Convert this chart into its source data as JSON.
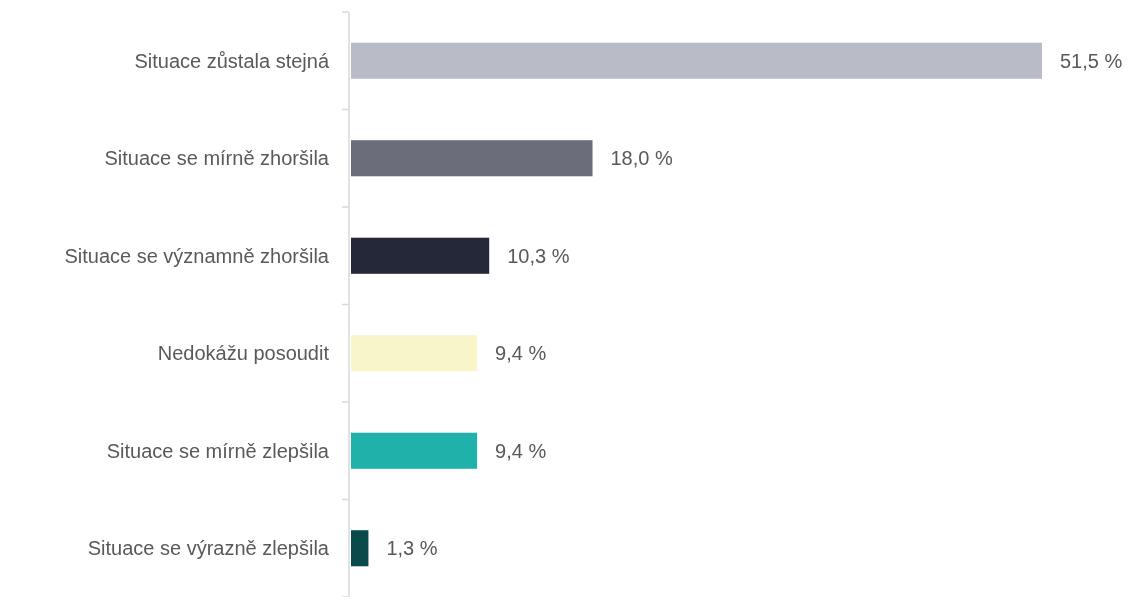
{
  "chart_data": {
    "type": "bar",
    "orientation": "horizontal",
    "categories": [
      "Situace zůstala stejná",
      "Situace se mírně zhoršila",
      "Situace se významně zhoršila",
      "Nedokážu posoudit",
      "Situace se mírně zlepšila",
      "Situace se výrazně zlepšila"
    ],
    "values": [
      51.5,
      18.0,
      10.3,
      9.4,
      9.4,
      1.3
    ],
    "value_labels": [
      "51,5 %",
      "18,0 %",
      "10,3 %",
      "9,4 %",
      "9,4 %",
      "1,3 %"
    ],
    "colors": [
      "#b9bbc6",
      "#6b6d7b",
      "#252838",
      "#f8f6c8",
      "#20b2aa",
      "#0a4a4a"
    ]
  }
}
